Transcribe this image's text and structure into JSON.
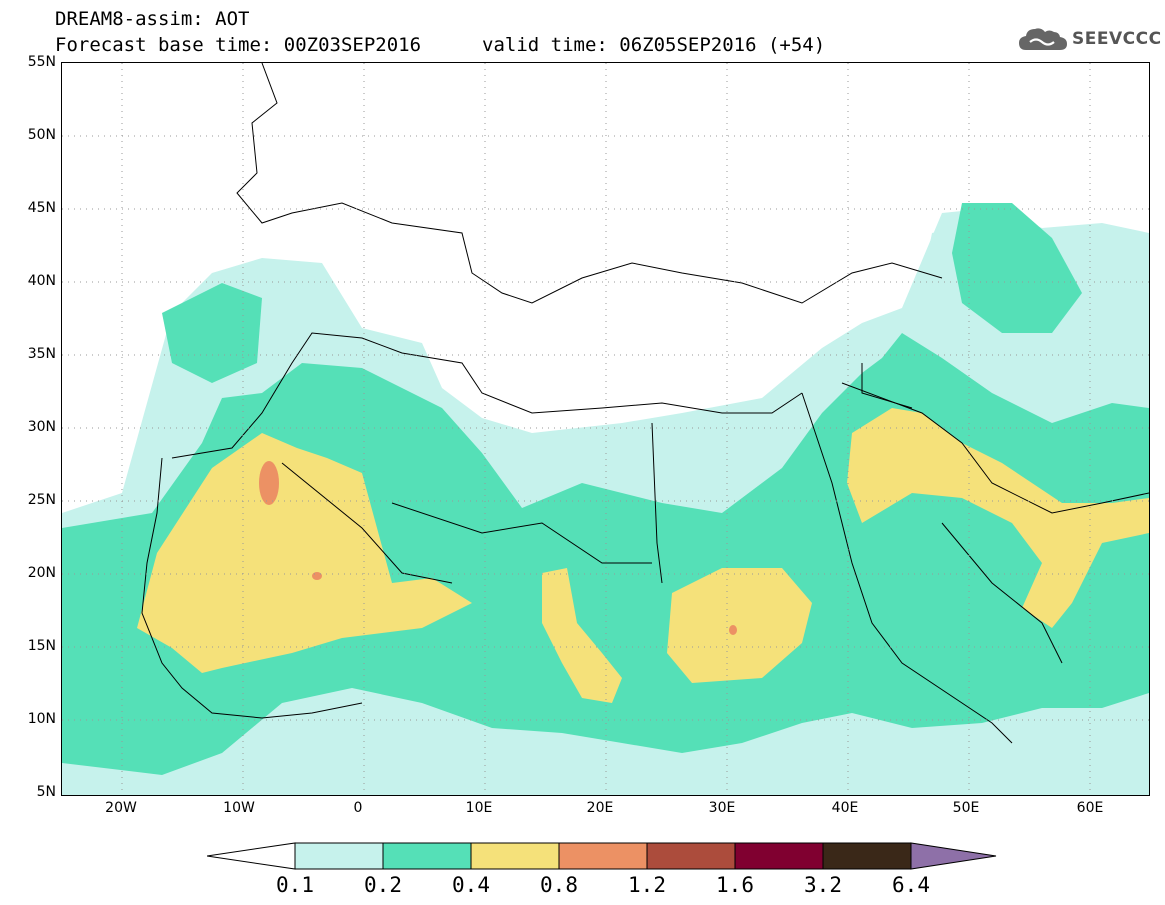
{
  "header": {
    "title": "DREAM8-assim: AOT",
    "forecast_base": "Forecast base time: 00Z03SEP2016",
    "valid_time": "valid time: 06Z05SEP2016 (+54)"
  },
  "logo": {
    "text": "SEEVCCC",
    "icon": "cloud-icon"
  },
  "map": {
    "lat_labels": [
      "55N",
      "50N",
      "45N",
      "40N",
      "35N",
      "30N",
      "25N",
      "20N",
      "15N",
      "10N",
      "5N"
    ],
    "lon_labels": [
      "20W",
      "10W",
      "0",
      "10E",
      "20E",
      "30E",
      "40E",
      "50E",
      "60E"
    ],
    "lon_range": [
      -25,
      65
    ],
    "lat_range": [
      5,
      55
    ],
    "grid": true
  },
  "legend": {
    "thresholds": [
      "0.1",
      "0.2",
      "0.4",
      "0.8",
      "1.2",
      "1.6",
      "3.2",
      "6.4"
    ],
    "colors": [
      "#ffffff",
      "#c6f2ec",
      "#55e0b7",
      "#f5e17a",
      "#ec9164",
      "#ac4c3c",
      "#800030",
      "#3a2818",
      "#8e70a8"
    ]
  }
}
